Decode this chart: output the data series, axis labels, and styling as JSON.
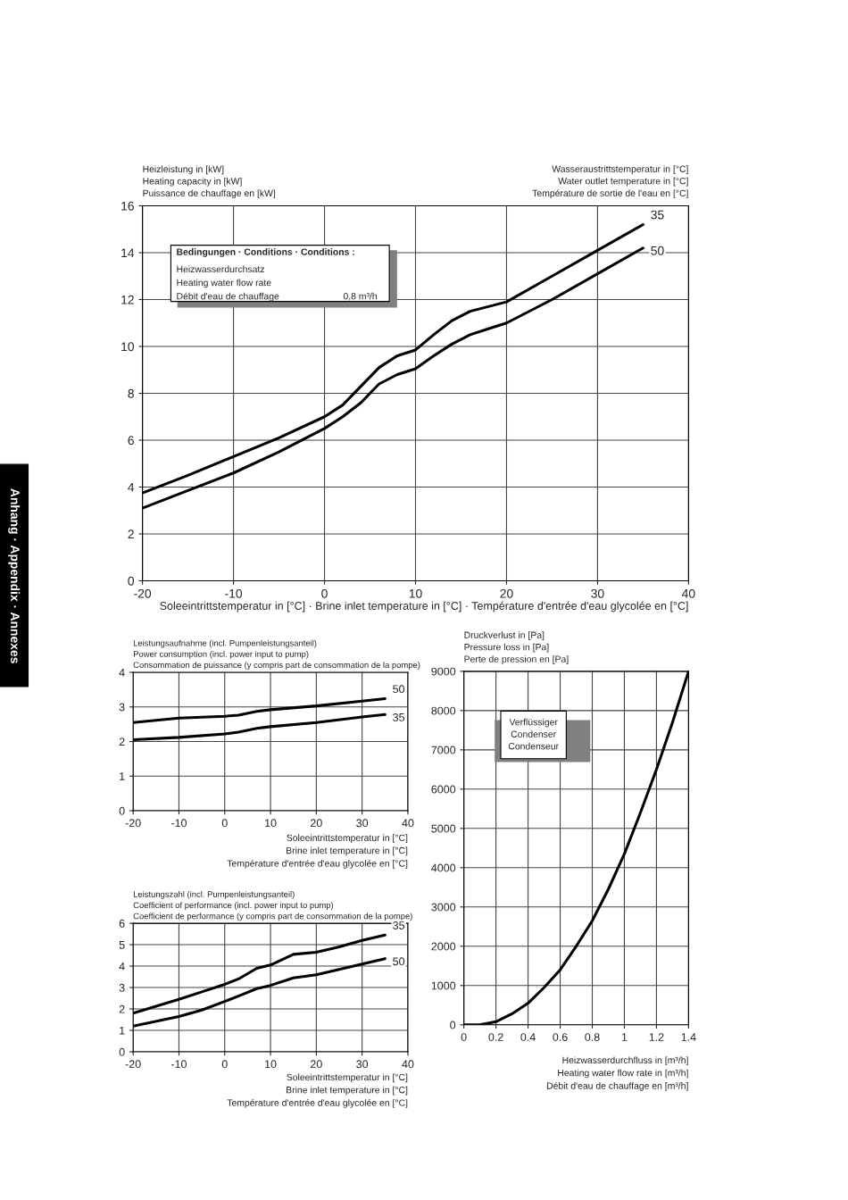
{
  "chart_data": [
    {
      "type": "line",
      "ylabel": "Heizleistung in [kW]\nHeating capacity in [kW]\nPuissance de chauffage en [kW]",
      "xlabel": "Soleeintrittstemperatur in [°C] · Brine inlet temperature in [°C] · Température d'entrée d'eau glycolée en [°C]",
      "legend_title": "Wasseraustrittstemperatur in [°C]\nWater outlet temperature in [°C]\nTempérature de sortie de l'eau en [°C]",
      "x": [
        -20,
        -15,
        -10,
        -5,
        0,
        2,
        4,
        6,
        8,
        10,
        12,
        14,
        16,
        18,
        20,
        25,
        30,
        35
      ],
      "series": [
        {
          "name": "35",
          "color": "#000000",
          "values": [
            3.75,
            4.5,
            5.3,
            6.1,
            7.0,
            7.5,
            8.3,
            9.1,
            9.6,
            9.85,
            10.5,
            11.1,
            11.5,
            11.7,
            11.9,
            13.0,
            14.1,
            15.2
          ]
        },
        {
          "name": "50",
          "color": "#000000",
          "values": [
            3.1,
            3.85,
            4.6,
            5.5,
            6.5,
            7.0,
            7.6,
            8.4,
            8.8,
            9.05,
            9.6,
            10.1,
            10.5,
            10.75,
            11.0,
            12.0,
            13.1,
            14.2
          ]
        }
      ],
      "xlim": [
        -20,
        40
      ],
      "xticks": [
        -20,
        -10,
        0,
        10,
        20,
        30,
        40
      ],
      "ylim": [
        0,
        16
      ],
      "yticks": [
        0,
        2,
        4,
        6,
        8,
        10,
        12,
        14,
        16
      ],
      "grid": true,
      "legend": false,
      "annotations": [
        "Bedingungen · Conditions · Conditions :",
        "Heizwasserdurchsatz",
        "Heating water flow rate",
        "Débit d'eau de chauffage",
        "0,8 m³/h",
        "Anhang · Appendix · Annexes"
      ]
    },
    {
      "type": "line",
      "ylabel": "Leistungsaufnahme (incl. Pumpenleistungsanteil)\nPower consumption (incl. power input to pump)\nConsommation de puissance (y compris part de consommation de la pompe)",
      "xlabel": "Soleeintrittstemperatur in [°C]\nBrine inlet temperature in [°C]\nTempérature d'entrée d'eau glycolée en [°C]",
      "x": [
        -20,
        -10,
        0,
        3,
        7,
        10,
        20,
        30,
        35
      ],
      "series": [
        {
          "name": "50",
          "color": "#000000",
          "values": [
            2.55,
            2.68,
            2.73,
            2.76,
            2.87,
            2.92,
            3.03,
            3.17,
            3.24
          ]
        },
        {
          "name": "35",
          "color": "#000000",
          "values": [
            2.05,
            2.12,
            2.22,
            2.27,
            2.38,
            2.43,
            2.55,
            2.71,
            2.78
          ]
        }
      ],
      "xlim": [
        -20,
        40
      ],
      "xticks": [
        -20,
        -10,
        0,
        10,
        20,
        30,
        40
      ],
      "ylim": [
        0,
        4
      ],
      "yticks": [
        0,
        1,
        2,
        3,
        4
      ],
      "grid": true,
      "legend": false
    },
    {
      "type": "line",
      "ylabel": "Leistungszahl (incl. Pumpenleistungsanteil)\nCoefficient of performance (incl. power input to pump)\nCoefficient de performance (y compris part de consommation de la pompe)",
      "xlabel": "Soleeintrittstemperatur in [°C]\nBrine inlet temperature in [°C]\nTempérature d'entrée d'eau glycolée en [°C]",
      "x": [
        -20,
        -10,
        -5,
        0,
        3,
        7,
        10,
        15,
        20,
        25,
        30,
        35
      ],
      "series": [
        {
          "name": "35",
          "color": "#000000",
          "values": [
            1.8,
            2.45,
            2.8,
            3.15,
            3.4,
            3.9,
            4.05,
            4.55,
            4.65,
            4.9,
            5.2,
            5.45
          ]
        },
        {
          "name": "50",
          "color": "#000000",
          "values": [
            1.2,
            1.65,
            1.95,
            2.35,
            2.6,
            2.95,
            3.1,
            3.45,
            3.6,
            3.85,
            4.1,
            4.35
          ]
        }
      ],
      "xlim": [
        -20,
        40
      ],
      "xticks": [
        -20,
        -10,
        0,
        10,
        20,
        30,
        40
      ],
      "ylim": [
        0,
        6
      ],
      "yticks": [
        0,
        1,
        2,
        3,
        4,
        5,
        6
      ],
      "grid": true,
      "legend": false
    },
    {
      "type": "line",
      "ylabel": "Druckverlust in [Pa]\nPressure loss in [Pa]\nPerte de pression en [Pa]",
      "xlabel": "Heizwasserdurchfluss in [m³/h]\nHeating water flow rate in [m³/h]\nDébit d'eau de chauffage en [m³/h]",
      "x": [
        0,
        0.1,
        0.2,
        0.3,
        0.4,
        0.5,
        0.6,
        0.7,
        0.8,
        0.9,
        1.0,
        1.1,
        1.2,
        1.3,
        1.4
      ],
      "series": [
        {
          "color": "#000000",
          "values": [
            0,
            0,
            80,
            280,
            550,
            950,
            1400,
            2000,
            2650,
            3450,
            4350,
            5400,
            6500,
            7700,
            9000
          ]
        }
      ],
      "xlim": [
        0,
        1.4
      ],
      "xticks": [
        0,
        0.2,
        0.4,
        0.6,
        0.8,
        1,
        1.2,
        1.4
      ],
      "ylim": [
        0,
        9000
      ],
      "yticks": [
        0,
        1000,
        2000,
        3000,
        4000,
        5000,
        6000,
        7000,
        8000,
        9000
      ],
      "grid": true,
      "legend": false,
      "annotations": [
        "Verflüssiger",
        "Condenser",
        "Condenseur"
      ]
    }
  ]
}
